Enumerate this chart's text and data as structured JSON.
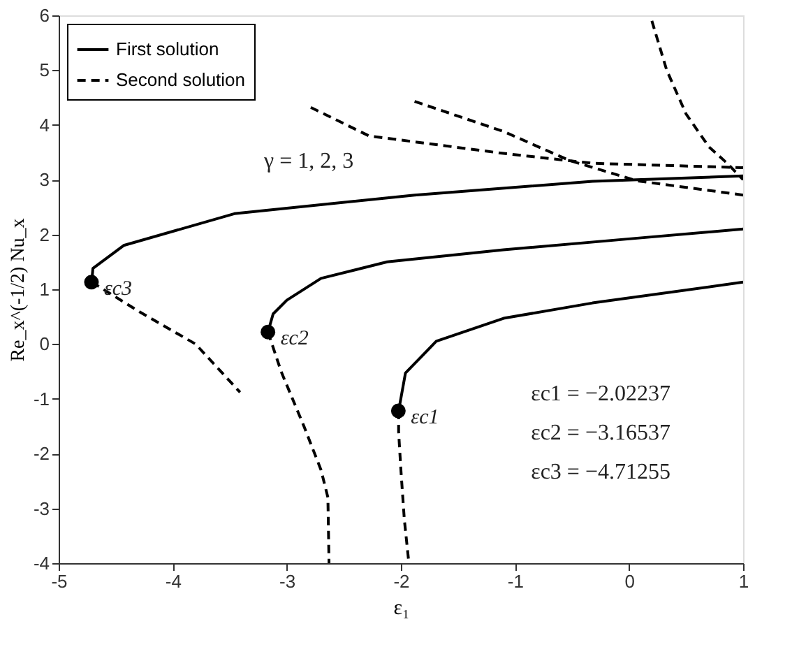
{
  "chart_data": {
    "type": "line",
    "xlabel": "ε₁",
    "ylabel": "Re_x^(-1/2) Nu_x",
    "xlim": [
      -5,
      1
    ],
    "ylim": [
      -4,
      6
    ],
    "xticks": [
      -5,
      -4,
      -3,
      -2,
      -1,
      0,
      1
    ],
    "yticks": [
      -4,
      -3,
      -2,
      -1,
      0,
      1,
      2,
      3,
      4,
      5,
      6
    ],
    "grid": false,
    "legend": "top left",
    "series": [
      {
        "name": "First solution",
        "color": "#000000",
        "line_style": "solid",
        "x": [
          -2.02,
          -1.96,
          -1.69,
          -1.1,
          -0.32,
          1
        ],
        "values": [
          -1.22,
          -0.53,
          0.05,
          0.47,
          0.75,
          1.13
        ]
      },
      {
        "color": "#000000",
        "line_style": "solid",
        "x": [
          -3.165,
          -3.12,
          -3.0,
          -2.7,
          -2.12,
          -1.1,
          0,
          1
        ],
        "values": [
          0.22,
          0.55,
          0.8,
          1.2,
          1.5,
          1.72,
          1.92,
          2.1
        ]
      },
      {
        "color": "#000000",
        "line_style": "solid",
        "x": [
          -4.71,
          -4.7,
          -4.43,
          -3.46,
          -1.88,
          -0.32,
          1
        ],
        "values": [
          1.13,
          1.38,
          1.8,
          2.38,
          2.72,
          2.97,
          3.07
        ]
      },
      {
        "name": "Second solution",
        "color": "#000000",
        "line_style": "dashed",
        "x": [
          -2.02,
          -2.02,
          -2.0,
          -1.97,
          -1.93
        ],
        "values": [
          -1.22,
          -1.6,
          -2.3,
          -3.2,
          -4
        ]
      },
      {
        "color": "#000000",
        "line_style": "dashed",
        "x": [
          -3.165,
          -3.05,
          -2.85,
          -2.7,
          -2.64,
          -2.63
        ],
        "values": [
          0.22,
          -0.5,
          -1.5,
          -2.3,
          -2.8,
          -4
        ]
      },
      {
        "color": "#000000",
        "line_style": "dashed",
        "x": [
          -4.71,
          -4.3,
          -3.8,
          -3.41
        ],
        "values": [
          1.13,
          0.6,
          0,
          -0.88
        ]
      },
      {
        "color": "#000000",
        "line_style": "dashed",
        "x": [
          0.2,
          0.33,
          0.5,
          0.7,
          0.86,
          1
        ],
        "values": [
          5.9,
          5.0,
          4.2,
          3.6,
          3.3,
          3.0
        ]
      },
      {
        "color": "#000000",
        "line_style": "dashed",
        "x": [
          -2.79,
          -2.28,
          -1.1,
          -0.32,
          1
        ],
        "values": [
          4.32,
          3.8,
          3.48,
          3.3,
          3.22
        ]
      },
      {
        "color": "#000000",
        "line_style": "dashed",
        "x": [
          -1.88,
          -1.1,
          -0.52,
          0.07,
          1
        ],
        "values": [
          4.43,
          3.88,
          3.35,
          2.98,
          2.72
        ]
      },
      {
        "type": "scatter",
        "color": "#000000",
        "marker": "circle",
        "x": [
          -2.02237,
          -3.16537,
          -4.71255
        ],
        "values": [
          -1.22,
          0.22,
          1.13
        ]
      }
    ],
    "annotations": [
      {
        "text": "εc1",
        "x": -2.02237,
        "y": -1.22
      },
      {
        "text": "εc2",
        "x": -3.16537,
        "y": 0.22
      },
      {
        "text": "εc3",
        "x": -4.71255,
        "y": 1.13
      },
      "γ = 1, 2, 3",
      "εc1 = −2.02237",
      "εc2 = −3.16537",
      "εc3 = −4.71255"
    ]
  }
}
